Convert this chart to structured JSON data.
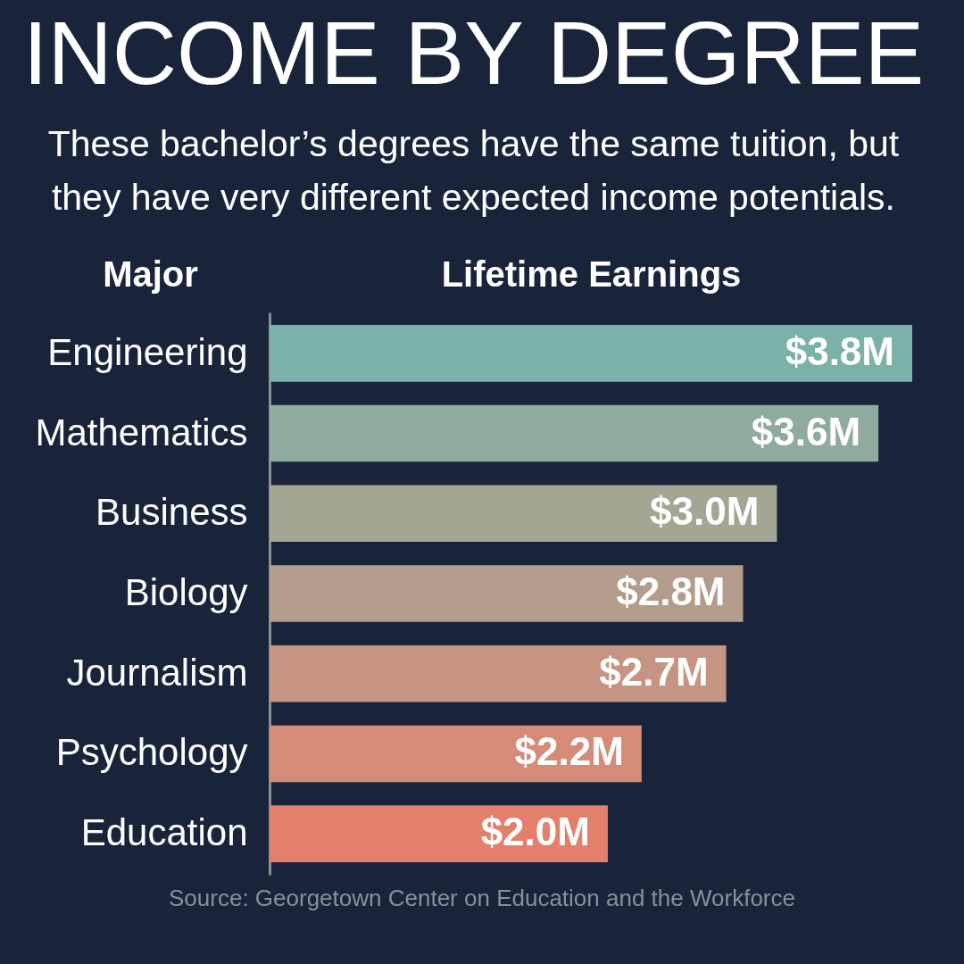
{
  "chart_data": {
    "type": "bar",
    "orientation": "horizontal",
    "title": "INCOME BY DEGREE",
    "subtitle": "These bachelor’s degrees have the same tuition, but they have very different expected income potentials.",
    "ylabel": "Major",
    "xlabel": "Lifetime Earnings",
    "categories": [
      "Engineering",
      "Mathematics",
      "Business",
      "Biology",
      "Journalism",
      "Psychology",
      "Education"
    ],
    "values": [
      3.8,
      3.6,
      3.0,
      2.8,
      2.7,
      2.2,
      2.0
    ],
    "colors": [
      "#7ab1a8",
      "#8eab9e",
      "#a2a693",
      "#b49c8c",
      "#c69482",
      "#d68a78",
      "#e37f6c"
    ],
    "value_labels": [
      "$3.8M",
      "$3.6M",
      "$3.0M",
      "$2.8M",
      "$2.7M",
      "$2.2M",
      "$2.0M"
    ],
    "tick_labels": "y",
    "annotations": [
      "Source: Georgetown Center on Education and the Workforce"
    ]
  }
}
